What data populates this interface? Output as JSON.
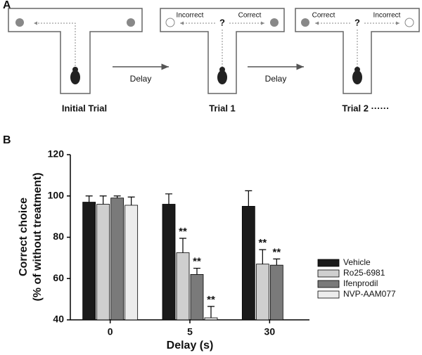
{
  "panel_a": {
    "label": "A",
    "trial_1": {
      "left": "Incorrect",
      "right": "Correct",
      "question": "?"
    },
    "trial_2": {
      "left": "Correct",
      "right": "Incorrect",
      "question": "?"
    },
    "delays": [
      "Delay",
      "Delay"
    ],
    "captions": [
      "Initial Trial",
      "Trial 1",
      "Trial 2 ······"
    ]
  },
  "chart_data": {
    "type": "bar",
    "panel_label": "B",
    "xlabel": "Delay (s)",
    "ylabel": [
      "Correct choice",
      "(% of without treatment)"
    ],
    "categories": [
      "0",
      "5",
      "30"
    ],
    "ylim": [
      40,
      120
    ],
    "yticks": [
      40,
      60,
      80,
      100,
      120
    ],
    "legend": "right",
    "series": [
      {
        "name": "Vehicle",
        "color": "#1a1a1a",
        "values": [
          97,
          96,
          95
        ],
        "errors": [
          3,
          5,
          7.5
        ],
        "annotations": [
          null,
          null,
          null
        ]
      },
      {
        "name": "Ro25-6981",
        "color": "#cfcfcf",
        "values": [
          96,
          72.5,
          67
        ],
        "errors": [
          4,
          7,
          7
        ],
        "annotations": [
          null,
          "**",
          "**"
        ]
      },
      {
        "name": "Ifenprodil",
        "color": "#7a7a7a",
        "values": [
          99,
          62,
          66.5
        ],
        "errors": [
          1,
          3,
          3
        ],
        "annotations": [
          null,
          "**",
          "**"
        ]
      },
      {
        "name": "NVP-AAM077",
        "color": "#ececec",
        "values": [
          95.5,
          41,
          null
        ],
        "errors": [
          4,
          5.5,
          null
        ],
        "annotations": [
          null,
          "**",
          null
        ]
      }
    ]
  }
}
